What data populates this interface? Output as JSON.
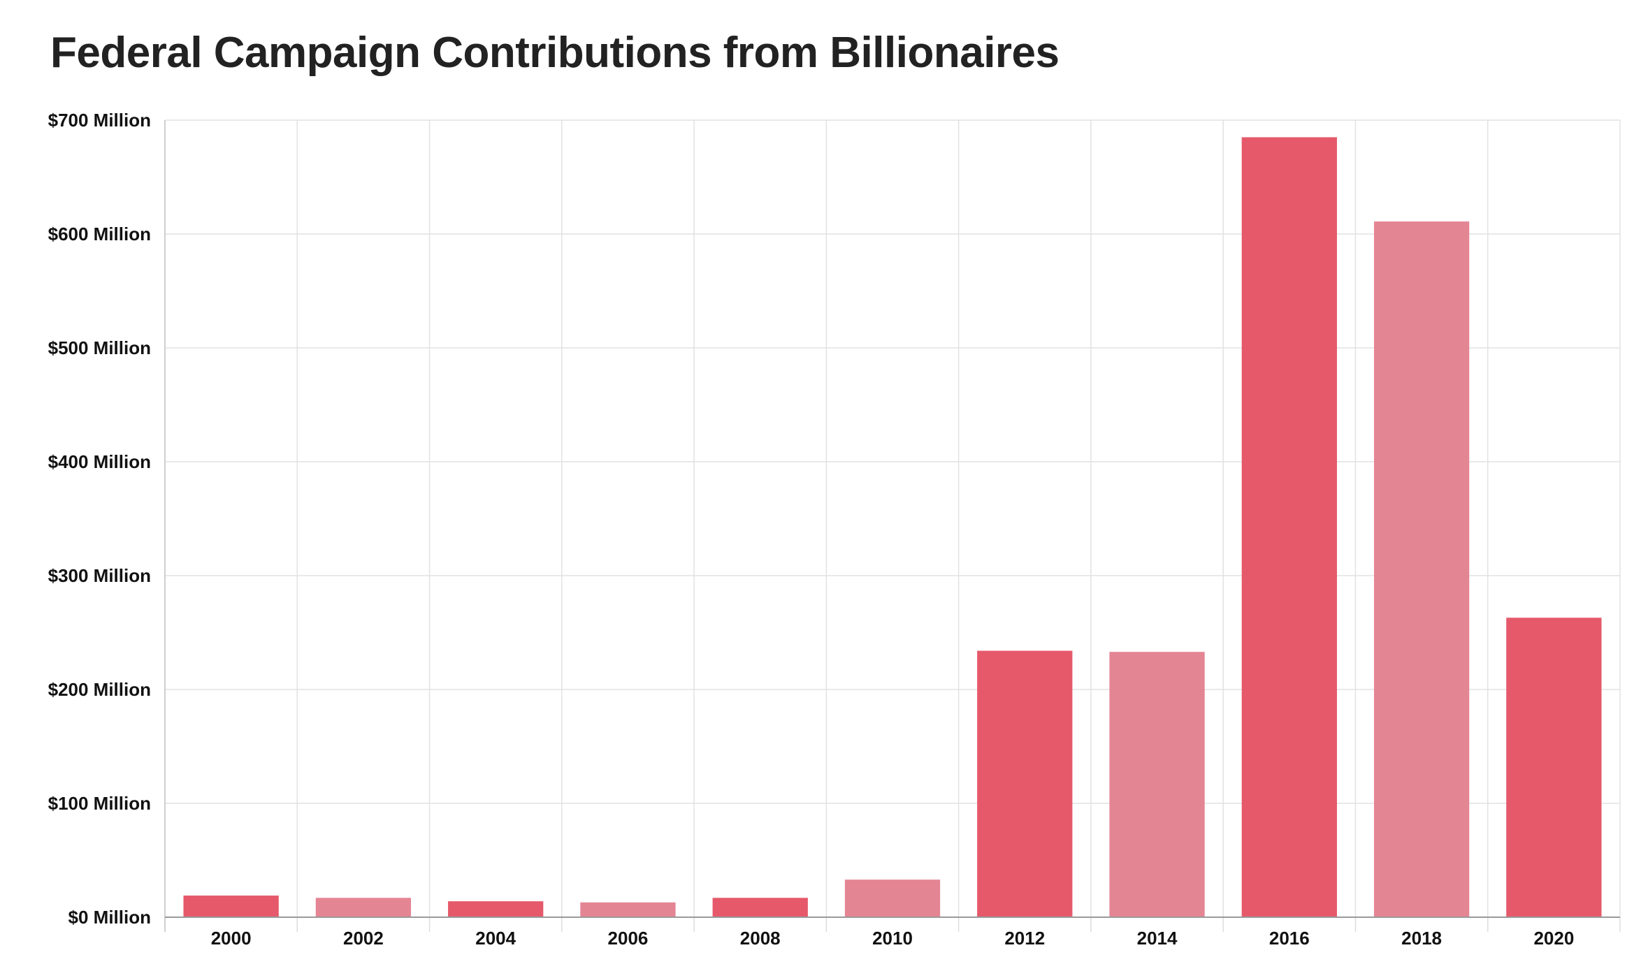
{
  "chart_data": {
    "type": "bar",
    "title": "Federal Campaign Contributions from Billionaires",
    "xlabel": "",
    "ylabel": "",
    "categories": [
      "2000",
      "2002",
      "2004",
      "2006",
      "2008",
      "2010",
      "2012",
      "2014",
      "2016",
      "2018",
      "2020"
    ],
    "values": [
      19,
      17,
      14,
      13,
      17,
      33,
      234,
      233,
      685,
      611,
      263
    ],
    "value_unit": "$ Million",
    "ylim": [
      0,
      700
    ],
    "y_ticks": [
      {
        "value": 0,
        "label": "$0 Million"
      },
      {
        "value": 100,
        "label": "$100 Million"
      },
      {
        "value": 200,
        "label": "$200 Million"
      },
      {
        "value": 300,
        "label": "$300 Million"
      },
      {
        "value": 400,
        "label": "$400 Million"
      },
      {
        "value": 500,
        "label": "$500 Million"
      },
      {
        "value": 600,
        "label": "$600 Million"
      },
      {
        "value": 700,
        "label": "$700 Million"
      }
    ],
    "grid": true,
    "legend": "none",
    "bar_colors": [
      "#e5596b",
      "#e48594"
    ]
  }
}
